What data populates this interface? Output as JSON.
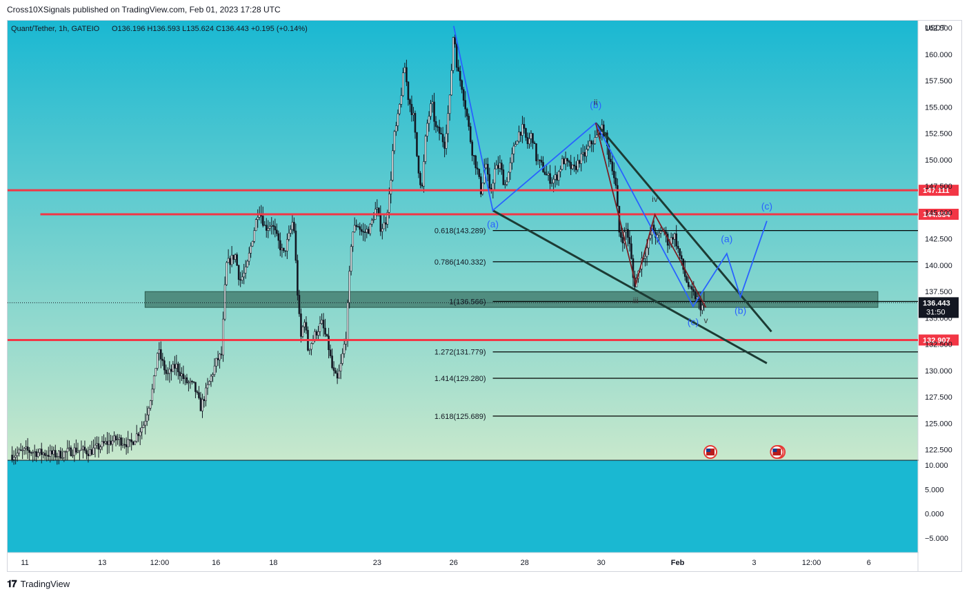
{
  "publisher_line": "Cross10XSignals published on TradingView.com, Feb 01, 2023 17:28 UTC",
  "legend": {
    "symbol": "Quant/Tether, 1h, GATEIO",
    "ohlc": "O136.196  H136.593  L135.624  C136.443  +0.195 (+0.14%)"
  },
  "footer": {
    "brand": "TradingView",
    "logo_icon": "tradingview-logo-icon"
  },
  "colors": {
    "bg_top": "#1ab8d2",
    "bg_bottom": "#c8e8cc",
    "osc_bg": "#1ab8d2",
    "candle": "#131722",
    "red_line": "#f23645",
    "blue_wave": "#2962ff",
    "maroon_wave": "#7a1f24",
    "trend": "#1c3b34",
    "fib_line": "#000000",
    "zone": "#3d7466",
    "wave_label": "#2962ff"
  },
  "chart_data": {
    "type": "candlestick",
    "currency": "USDT",
    "ylim": [
      121.5,
      163.2
    ],
    "y_ticks": [
      "162.500",
      "160.000",
      "157.500",
      "155.000",
      "152.500",
      "150.000",
      "147.500",
      "145.000",
      "142.500",
      "140.000",
      "137.500",
      "135.000",
      "132.500",
      "130.000",
      "127.500",
      "125.000",
      "122.500"
    ],
    "x_ticks": [
      {
        "label": "11",
        "x": 0.019
      },
      {
        "label": "13",
        "x": 0.104
      },
      {
        "label": "12:00",
        "x": 0.167
      },
      {
        "label": "16",
        "x": 0.229
      },
      {
        "label": "18",
        "x": 0.292
      },
      {
        "label": "23",
        "x": 0.406
      },
      {
        "label": "26",
        "x": 0.49
      },
      {
        "label": "28",
        "x": 0.568
      },
      {
        "label": "30",
        "x": 0.652
      },
      {
        "label": "Feb",
        "x": 0.736
      },
      {
        "label": "3",
        "x": 0.82
      },
      {
        "label": "12:00",
        "x": 0.883
      },
      {
        "label": "6",
        "x": 0.946
      }
    ],
    "x_domain": [
      0,
      1
    ],
    "price_path": [
      [
        0.005,
        122.0
      ],
      [
        0.02,
        122.4
      ],
      [
        0.035,
        122.2
      ],
      [
        0.055,
        122.0
      ],
      [
        0.075,
        122.5
      ],
      [
        0.09,
        122.3
      ],
      [
        0.105,
        123.0
      ],
      [
        0.12,
        123.5
      ],
      [
        0.135,
        123.0
      ],
      [
        0.15,
        125.0
      ],
      [
        0.16,
        128.5
      ],
      [
        0.165,
        132.0
      ],
      [
        0.175,
        129.5
      ],
      [
        0.185,
        130.5
      ],
      [
        0.195,
        129.0
      ],
      [
        0.205,
        128.5
      ],
      [
        0.212,
        126.5
      ],
      [
        0.22,
        128.5
      ],
      [
        0.23,
        131.0
      ],
      [
        0.235,
        131.5
      ],
      [
        0.24,
        140.0
      ],
      [
        0.25,
        141.0
      ],
      [
        0.255,
        138.5
      ],
      [
        0.262,
        139.5
      ],
      [
        0.27,
        143.0
      ],
      [
        0.276,
        145.5
      ],
      [
        0.283,
        143.5
      ],
      [
        0.29,
        144.0
      ],
      [
        0.296,
        142.5
      ],
      [
        0.303,
        141.0
      ],
      [
        0.31,
        143.0
      ],
      [
        0.314,
        144.5
      ],
      [
        0.318,
        138.0
      ],
      [
        0.322,
        133.0
      ],
      [
        0.326,
        135.0
      ],
      [
        0.33,
        132.0
      ],
      [
        0.338,
        133.5
      ],
      [
        0.345,
        134.5
      ],
      [
        0.352,
        132.5
      ],
      [
        0.357,
        130.0
      ],
      [
        0.362,
        129.0
      ],
      [
        0.366,
        130.5
      ],
      [
        0.372,
        133.5
      ],
      [
        0.378,
        143.0
      ],
      [
        0.384,
        144.0
      ],
      [
        0.39,
        143.0
      ],
      [
        0.398,
        143.5
      ],
      [
        0.405,
        145.5
      ],
      [
        0.41,
        143.5
      ],
      [
        0.415,
        144.0
      ],
      [
        0.42,
        147.0
      ],
      [
        0.424,
        152.0
      ],
      [
        0.428,
        153.5
      ],
      [
        0.432,
        156.0
      ],
      [
        0.436,
        159.0
      ],
      [
        0.44,
        156.0
      ],
      [
        0.446,
        154.0
      ],
      [
        0.45,
        150.0
      ],
      [
        0.455,
        147.0
      ],
      [
        0.46,
        153.0
      ],
      [
        0.466,
        155.5
      ],
      [
        0.47,
        153.0
      ],
      [
        0.475,
        152.5
      ],
      [
        0.48,
        151.5
      ],
      [
        0.486,
        156.0
      ],
      [
        0.49,
        162.5
      ],
      [
        0.494,
        158.5
      ],
      [
        0.499,
        157.0
      ],
      [
        0.504,
        154.5
      ],
      [
        0.51,
        151.0
      ],
      [
        0.516,
        149.0
      ],
      [
        0.52,
        147.0
      ],
      [
        0.525,
        150.0
      ],
      [
        0.53,
        146.5
      ],
      [
        0.535,
        149.0
      ],
      [
        0.541,
        149.5
      ],
      [
        0.546,
        147.5
      ],
      [
        0.551,
        149.0
      ],
      [
        0.556,
        151.0
      ],
      [
        0.561,
        152.5
      ],
      [
        0.566,
        153.0
      ],
      [
        0.571,
        151.5
      ],
      [
        0.576,
        152.5
      ],
      [
        0.581,
        150.0
      ],
      [
        0.586,
        149.5
      ],
      [
        0.592,
        148.5
      ],
      [
        0.598,
        148.0
      ],
      [
        0.604,
        148.5
      ],
      [
        0.61,
        150.0
      ],
      [
        0.616,
        149.5
      ],
      [
        0.622,
        149.0
      ],
      [
        0.628,
        150.0
      ],
      [
        0.634,
        150.5
      ],
      [
        0.64,
        151.5
      ],
      [
        0.646,
        152.0
      ],
      [
        0.652,
        153.0
      ],
      [
        0.656,
        152.5
      ],
      [
        0.66,
        150.5
      ],
      [
        0.664,
        149.5
      ],
      [
        0.668,
        147.5
      ],
      [
        0.672,
        143.0
      ],
      [
        0.676,
        142.5
      ],
      [
        0.68,
        143.5
      ],
      [
        0.684,
        141.5
      ],
      [
        0.688,
        138.0
      ],
      [
        0.692,
        139.0
      ],
      [
        0.696,
        140.5
      ],
      [
        0.702,
        141.5
      ],
      [
        0.708,
        143.5
      ],
      [
        0.714,
        142.5
      ],
      [
        0.72,
        143.5
      ],
      [
        0.726,
        142.0
      ],
      [
        0.732,
        143.0
      ],
      [
        0.738,
        141.0
      ],
      [
        0.744,
        139.0
      ],
      [
        0.75,
        137.5
      ],
      [
        0.756,
        137.0
      ],
      [
        0.762,
        136.0
      ],
      [
        0.766,
        136.4
      ]
    ],
    "horizontal_levels": [
      {
        "value": 147.111,
        "label": "147.111",
        "x_start": 0.0
      },
      {
        "value": 144.834,
        "label": "144.834",
        "x_start": 0.036
      },
      {
        "value": 132.907,
        "label": "132.907",
        "x_start": 0.0
      }
    ],
    "current_price": {
      "value": 136.443,
      "label": "136.443",
      "countdown": "31:50"
    },
    "fib_levels": [
      {
        "ratio_label": "0.618(143.289)",
        "value": 143.289
      },
      {
        "ratio_label": "0.786(140.332)",
        "value": 140.332
      },
      {
        "ratio_label": "1(136.566)",
        "value": 136.566
      },
      {
        "ratio_label": "1.272(131.779)",
        "value": 131.779
      },
      {
        "ratio_label": "1.414(129.280)",
        "value": 129.28
      },
      {
        "ratio_label": "1.618(125.689)",
        "value": 125.689
      }
    ],
    "fib_x_start": 0.533,
    "zone": {
      "x0": 0.151,
      "x1": 0.956,
      "top": 137.5,
      "bottom": 136.0
    },
    "blue_wave": [
      [
        0.49,
        162.7
      ],
      [
        0.533,
        145.2
      ],
      [
        0.646,
        153.5
      ],
      [
        0.753,
        136.1
      ],
      [
        0.79,
        141.1
      ],
      [
        0.805,
        137.0
      ],
      [
        0.834,
        144.2
      ]
    ],
    "maroon_wave": [
      [
        0.646,
        153.5
      ],
      [
        0.69,
        138.2
      ],
      [
        0.711,
        144.8
      ],
      [
        0.767,
        136.0
      ]
    ],
    "trendlines": [
      [
        [
          0.646,
          153.5
        ],
        [
          0.839,
          133.7
        ]
      ],
      [
        [
          0.533,
          145.2
        ],
        [
          0.834,
          130.7
        ]
      ]
    ],
    "wave_labels": [
      {
        "text": "(a)",
        "x": 0.533,
        "y": 143.6,
        "color": "blue"
      },
      {
        "text": "(b)",
        "x": 0.646,
        "y": 154.9,
        "color": "blue"
      },
      {
        "text": "ii",
        "x": 0.646,
        "y": 155.2,
        "color": "dark"
      },
      {
        "text": "iii",
        "x": 0.69,
        "y": 136.4,
        "color": "dark"
      },
      {
        "text": "iv",
        "x": 0.711,
        "y": 146.0,
        "color": "dark"
      },
      {
        "text": "(c)",
        "x": 0.753,
        "y": 134.3,
        "color": "blue"
      },
      {
        "text": "v",
        "x": 0.767,
        "y": 134.5,
        "color": "dark"
      },
      {
        "text": "(a)",
        "x": 0.79,
        "y": 142.2,
        "color": "blue"
      },
      {
        "text": "(b)",
        "x": 0.805,
        "y": 135.4,
        "color": "blue"
      },
      {
        "text": "(c)",
        "x": 0.834,
        "y": 145.3,
        "color": "blue"
      }
    ],
    "event_icons": [
      {
        "x": 0.772,
        "name": "us-flag-event-icon"
      },
      {
        "x": 0.847,
        "name": "us-flag-event-icon"
      },
      {
        "x": 0.845,
        "name": "us-flag-event-icon"
      }
    ],
    "oscillator": {
      "ylim": [
        -8,
        11
      ],
      "y_ticks": [
        "10.000",
        "5.000",
        "0.000",
        "−5.000"
      ]
    }
  }
}
